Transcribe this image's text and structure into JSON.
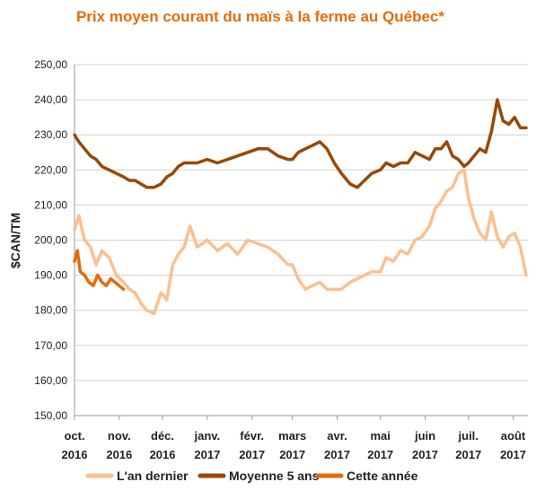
{
  "chart_data": {
    "type": "line",
    "title": "Prix moyen courant du maïs à la ferme au Québec*",
    "ylabel": "$CAN/TM",
    "xlabel": "",
    "ylim": [
      150,
      250
    ],
    "yticks": [
      "150,00",
      "160,00",
      "170,00",
      "180,00",
      "190,00",
      "200,00",
      "210,00",
      "220,00",
      "230,00",
      "240,00",
      "250,00"
    ],
    "xticks": [
      {
        "month": "oct.",
        "year": "2016"
      },
      {
        "month": "nov.",
        "year": "2016"
      },
      {
        "month": "déc.",
        "year": "2016"
      },
      {
        "month": "janv.",
        "year": "2017"
      },
      {
        "month": "févr.",
        "year": "2017"
      },
      {
        "month": "mars",
        "year": "2017"
      },
      {
        "month": "avr.",
        "year": "2017"
      },
      {
        "month": "mai",
        "year": "2017"
      },
      {
        "month": "juin",
        "year": "2017"
      },
      {
        "month": "juil.",
        "year": "2017"
      },
      {
        "month": "août",
        "year": "2017"
      }
    ],
    "grid": true,
    "legend_position": "bottom",
    "colors": {
      "title": "#E46C0A",
      "last_year": "#FAC090",
      "five_year": "#984807",
      "this_year": "#E46C0A"
    },
    "series": [
      {
        "name": "L'an dernier",
        "x": [
          "2016-10-01",
          "2016-10-04",
          "2016-10-08",
          "2016-10-12",
          "2016-10-16",
          "2016-10-20",
          "2016-10-25",
          "2016-10-30",
          "2016-11-04",
          "2016-11-08",
          "2016-11-12",
          "2016-11-16",
          "2016-11-20",
          "2016-11-25",
          "2016-11-30",
          "2016-12-04",
          "2016-12-08",
          "2016-12-12",
          "2016-12-16",
          "2016-12-20",
          "2016-12-25",
          "2017-01-01",
          "2017-01-08",
          "2017-01-15",
          "2017-01-22",
          "2017-01-29",
          "2017-02-05",
          "2017-02-12",
          "2017-02-19",
          "2017-02-26",
          "2017-03-01",
          "2017-03-05",
          "2017-03-10",
          "2017-03-15",
          "2017-03-20",
          "2017-03-25",
          "2017-03-30",
          "2017-04-04",
          "2017-04-10",
          "2017-04-15",
          "2017-04-20",
          "2017-04-25",
          "2017-05-01",
          "2017-05-05",
          "2017-05-10",
          "2017-05-15",
          "2017-05-20",
          "2017-05-25",
          "2017-05-30",
          "2017-06-04",
          "2017-06-08",
          "2017-06-12",
          "2017-06-16",
          "2017-06-20",
          "2017-06-24",
          "2017-06-28",
          "2017-07-01",
          "2017-07-05",
          "2017-07-09",
          "2017-07-13",
          "2017-07-17",
          "2017-07-21",
          "2017-07-25",
          "2017-07-29",
          "2017-08-02",
          "2017-08-06",
          "2017-08-10"
        ],
        "values": [
          203,
          207,
          200,
          198,
          193,
          197,
          195,
          190,
          188,
          186,
          185,
          182,
          180,
          179,
          185,
          183,
          193,
          196,
          198,
          204,
          198,
          200,
          197,
          199,
          196,
          200,
          199,
          198,
          196,
          193,
          193,
          189,
          186,
          187,
          188,
          186,
          186,
          186,
          188,
          189,
          190,
          191,
          191,
          195,
          194,
          197,
          196,
          200,
          201,
          204,
          209,
          211,
          214,
          215,
          219,
          220,
          212,
          206,
          202,
          200,
          208,
          201,
          198,
          201,
          202,
          198,
          190
        ]
      },
      {
        "name": "Moyenne 5 ans",
        "x": [
          "2016-10-01",
          "2016-10-04",
          "2016-10-08",
          "2016-10-12",
          "2016-10-16",
          "2016-10-20",
          "2016-10-25",
          "2016-10-30",
          "2016-11-04",
          "2016-11-08",
          "2016-11-12",
          "2016-11-16",
          "2016-11-20",
          "2016-11-25",
          "2016-11-30",
          "2016-12-04",
          "2016-12-08",
          "2016-12-12",
          "2016-12-16",
          "2016-12-20",
          "2016-12-25",
          "2017-01-01",
          "2017-01-08",
          "2017-01-15",
          "2017-01-22",
          "2017-01-29",
          "2017-02-05",
          "2017-02-12",
          "2017-02-19",
          "2017-02-26",
          "2017-03-01",
          "2017-03-05",
          "2017-03-10",
          "2017-03-15",
          "2017-03-20",
          "2017-03-25",
          "2017-03-30",
          "2017-04-04",
          "2017-04-10",
          "2017-04-15",
          "2017-04-20",
          "2017-04-25",
          "2017-05-01",
          "2017-05-05",
          "2017-05-10",
          "2017-05-15",
          "2017-05-20",
          "2017-05-25",
          "2017-05-30",
          "2017-06-04",
          "2017-06-08",
          "2017-06-12",
          "2017-06-16",
          "2017-06-20",
          "2017-06-24",
          "2017-06-28",
          "2017-07-01",
          "2017-07-05",
          "2017-07-09",
          "2017-07-13",
          "2017-07-17",
          "2017-07-21",
          "2017-07-25",
          "2017-07-29",
          "2017-08-02",
          "2017-08-06",
          "2017-08-10"
        ],
        "values": [
          230,
          228,
          226,
          224,
          223,
          221,
          220,
          219,
          218,
          217,
          217,
          216,
          215,
          215,
          216,
          218,
          219,
          221,
          222,
          222,
          222,
          223,
          222,
          223,
          224,
          225,
          226,
          226,
          224,
          223,
          223,
          225,
          226,
          227,
          228,
          226,
          222,
          219,
          216,
          215,
          217,
          219,
          220,
          222,
          221,
          222,
          222,
          225,
          224,
          223,
          226,
          226,
          228,
          224,
          223,
          221,
          222,
          224,
          226,
          225,
          231,
          240,
          234,
          233,
          235,
          232,
          232
        ]
      },
      {
        "name": "Cette année",
        "x": [
          "2016-10-01",
          "2016-10-03",
          "2016-10-05",
          "2016-10-08",
          "2016-10-11",
          "2016-10-14",
          "2016-10-17",
          "2016-10-20",
          "2016-10-23",
          "2016-10-26",
          "2016-10-29",
          "2016-11-01",
          "2016-11-04"
        ],
        "values": [
          194,
          197,
          191,
          190,
          188,
          187,
          190,
          188,
          187,
          189,
          188,
          187,
          186
        ]
      }
    ]
  }
}
